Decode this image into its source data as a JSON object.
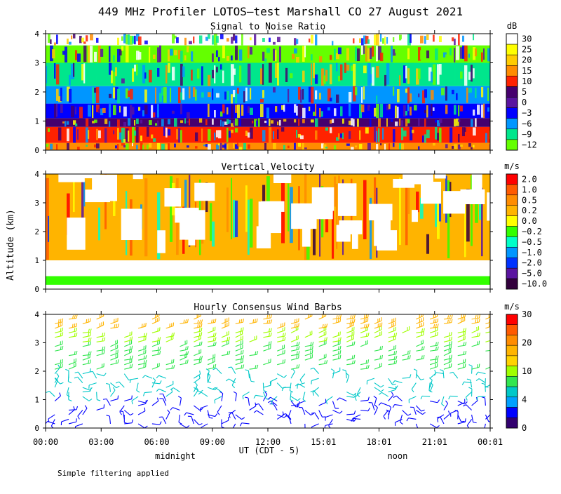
{
  "title": "449 MHz Profiler LOTOS—test Marshall CO 27 August 2021",
  "ylabel": "Altitude (km)",
  "xlabel": "UT  (CDT - 5)",
  "x_ticks": [
    "00:00",
    "03:00",
    "06:00",
    "09:00",
    "12:00",
    "15:01",
    "18:01",
    "21:01",
    "00:01"
  ],
  "x_subtitles": [
    {
      "text": "midnight",
      "x_hours": 7.0
    },
    {
      "text": "noon",
      "x_hours": 19.0
    }
  ],
  "footnote": "Simple filtering applied",
  "colors": {
    "background": "#ffffff",
    "axes": "#000000"
  },
  "chart_data": [
    {
      "type": "heatmap",
      "title": "Signal to Noise Ratio",
      "unit": "dB",
      "x_range_hours": [
        0,
        24
      ],
      "ylim": [
        0,
        4
      ],
      "yticks": [
        0,
        1,
        2,
        3,
        4
      ],
      "legend_placement": "right",
      "colorbar": {
        "labels": [
          "30",
          "25",
          "20",
          "15",
          "10",
          "5",
          "0",
          "−3",
          "−6",
          "−9",
          "−12"
        ],
        "colors": [
          "#ffffff",
          "#ffff00",
          "#ffcc00",
          "#ff8c00",
          "#ff2200",
          "#46006e",
          "#5a14a0",
          "#0000ff",
          "#0096ff",
          "#00e68c",
          "#64ff00"
        ]
      },
      "bands": [
        {
          "ymin": 0.0,
          "ymax": 0.25,
          "color": "#ff8c00"
        },
        {
          "ymin": 0.25,
          "ymax": 0.8,
          "color": "#ff2200"
        },
        {
          "ymin": 0.8,
          "ymax": 1.1,
          "color": "#46006e"
        },
        {
          "ymin": 1.1,
          "ymax": 1.6,
          "color": "#0000ff"
        },
        {
          "ymin": 1.6,
          "ymax": 2.2,
          "color": "#0096ff"
        },
        {
          "ymin": 2.2,
          "ymax": 3.0,
          "color": "#00e68c"
        },
        {
          "ymin": 3.0,
          "ymax": 3.6,
          "color": "#64ff00"
        },
        {
          "ymin": 3.6,
          "ymax": 4.0,
          "color": "#ffffff"
        }
      ]
    },
    {
      "type": "heatmap",
      "title": "Vertical Velocity",
      "unit": "m/s",
      "x_range_hours": [
        0,
        24
      ],
      "ylim": [
        0,
        4
      ],
      "yticks": [
        0,
        1,
        2,
        3,
        4
      ],
      "legend_placement": "right",
      "colorbar": {
        "labels": [
          "2.0",
          "1.0",
          "0.5",
          "0.2",
          "0.0",
          "−0.2",
          "−0.5",
          "−1.0",
          "−2.0",
          "−5.0",
          "−10.0"
        ],
        "colors": [
          "#ff0000",
          "#ff5a00",
          "#ff8c00",
          "#ffb400",
          "#ffff00",
          "#32ff00",
          "#00ffc8",
          "#0096ff",
          "#0032ff",
          "#5a14a0",
          "#32003c"
        ]
      },
      "bands": [
        {
          "ymin": 0.15,
          "ymax": 0.45,
          "color": "#32ff00"
        },
        {
          "ymin": 1.0,
          "ymax": 4.0,
          "color": "#ffb400"
        }
      ]
    },
    {
      "type": "scatter",
      "title": "Hourly Consensus Wind Barbs",
      "unit": "m/s",
      "x_range_hours": [
        0,
        24
      ],
      "ylim": [
        0,
        4
      ],
      "yticks": [
        0,
        1,
        2,
        3,
        4
      ],
      "legend_placement": "right",
      "colorbar": {
        "labels": [
          "30",
          "20",
          "10",
          "4",
          "0"
        ],
        "colors": [
          "#ff0000",
          "#ff5a00",
          "#ff8c00",
          "#ffb400",
          "#ffd200",
          "#a0ff00",
          "#32e650",
          "#00c8c8",
          "#00a0ff",
          "#0000ff",
          "#32006e"
        ]
      },
      "speed_profile": [
        {
          "ymin": 0.0,
          "ymax": 1.0,
          "speed_ms": 4,
          "color": "#0000ff"
        },
        {
          "ymin": 1.0,
          "ymax": 2.0,
          "speed_ms": 8,
          "color": "#00c8c8"
        },
        {
          "ymin": 2.0,
          "ymax": 3.0,
          "speed_ms": 12,
          "color": "#32e650"
        },
        {
          "ymin": 3.0,
          "ymax": 3.5,
          "speed_ms": 18,
          "color": "#a0ff00"
        },
        {
          "ymin": 3.5,
          "ymax": 4.0,
          "speed_ms": 24,
          "color": "#ffb400"
        }
      ]
    }
  ]
}
